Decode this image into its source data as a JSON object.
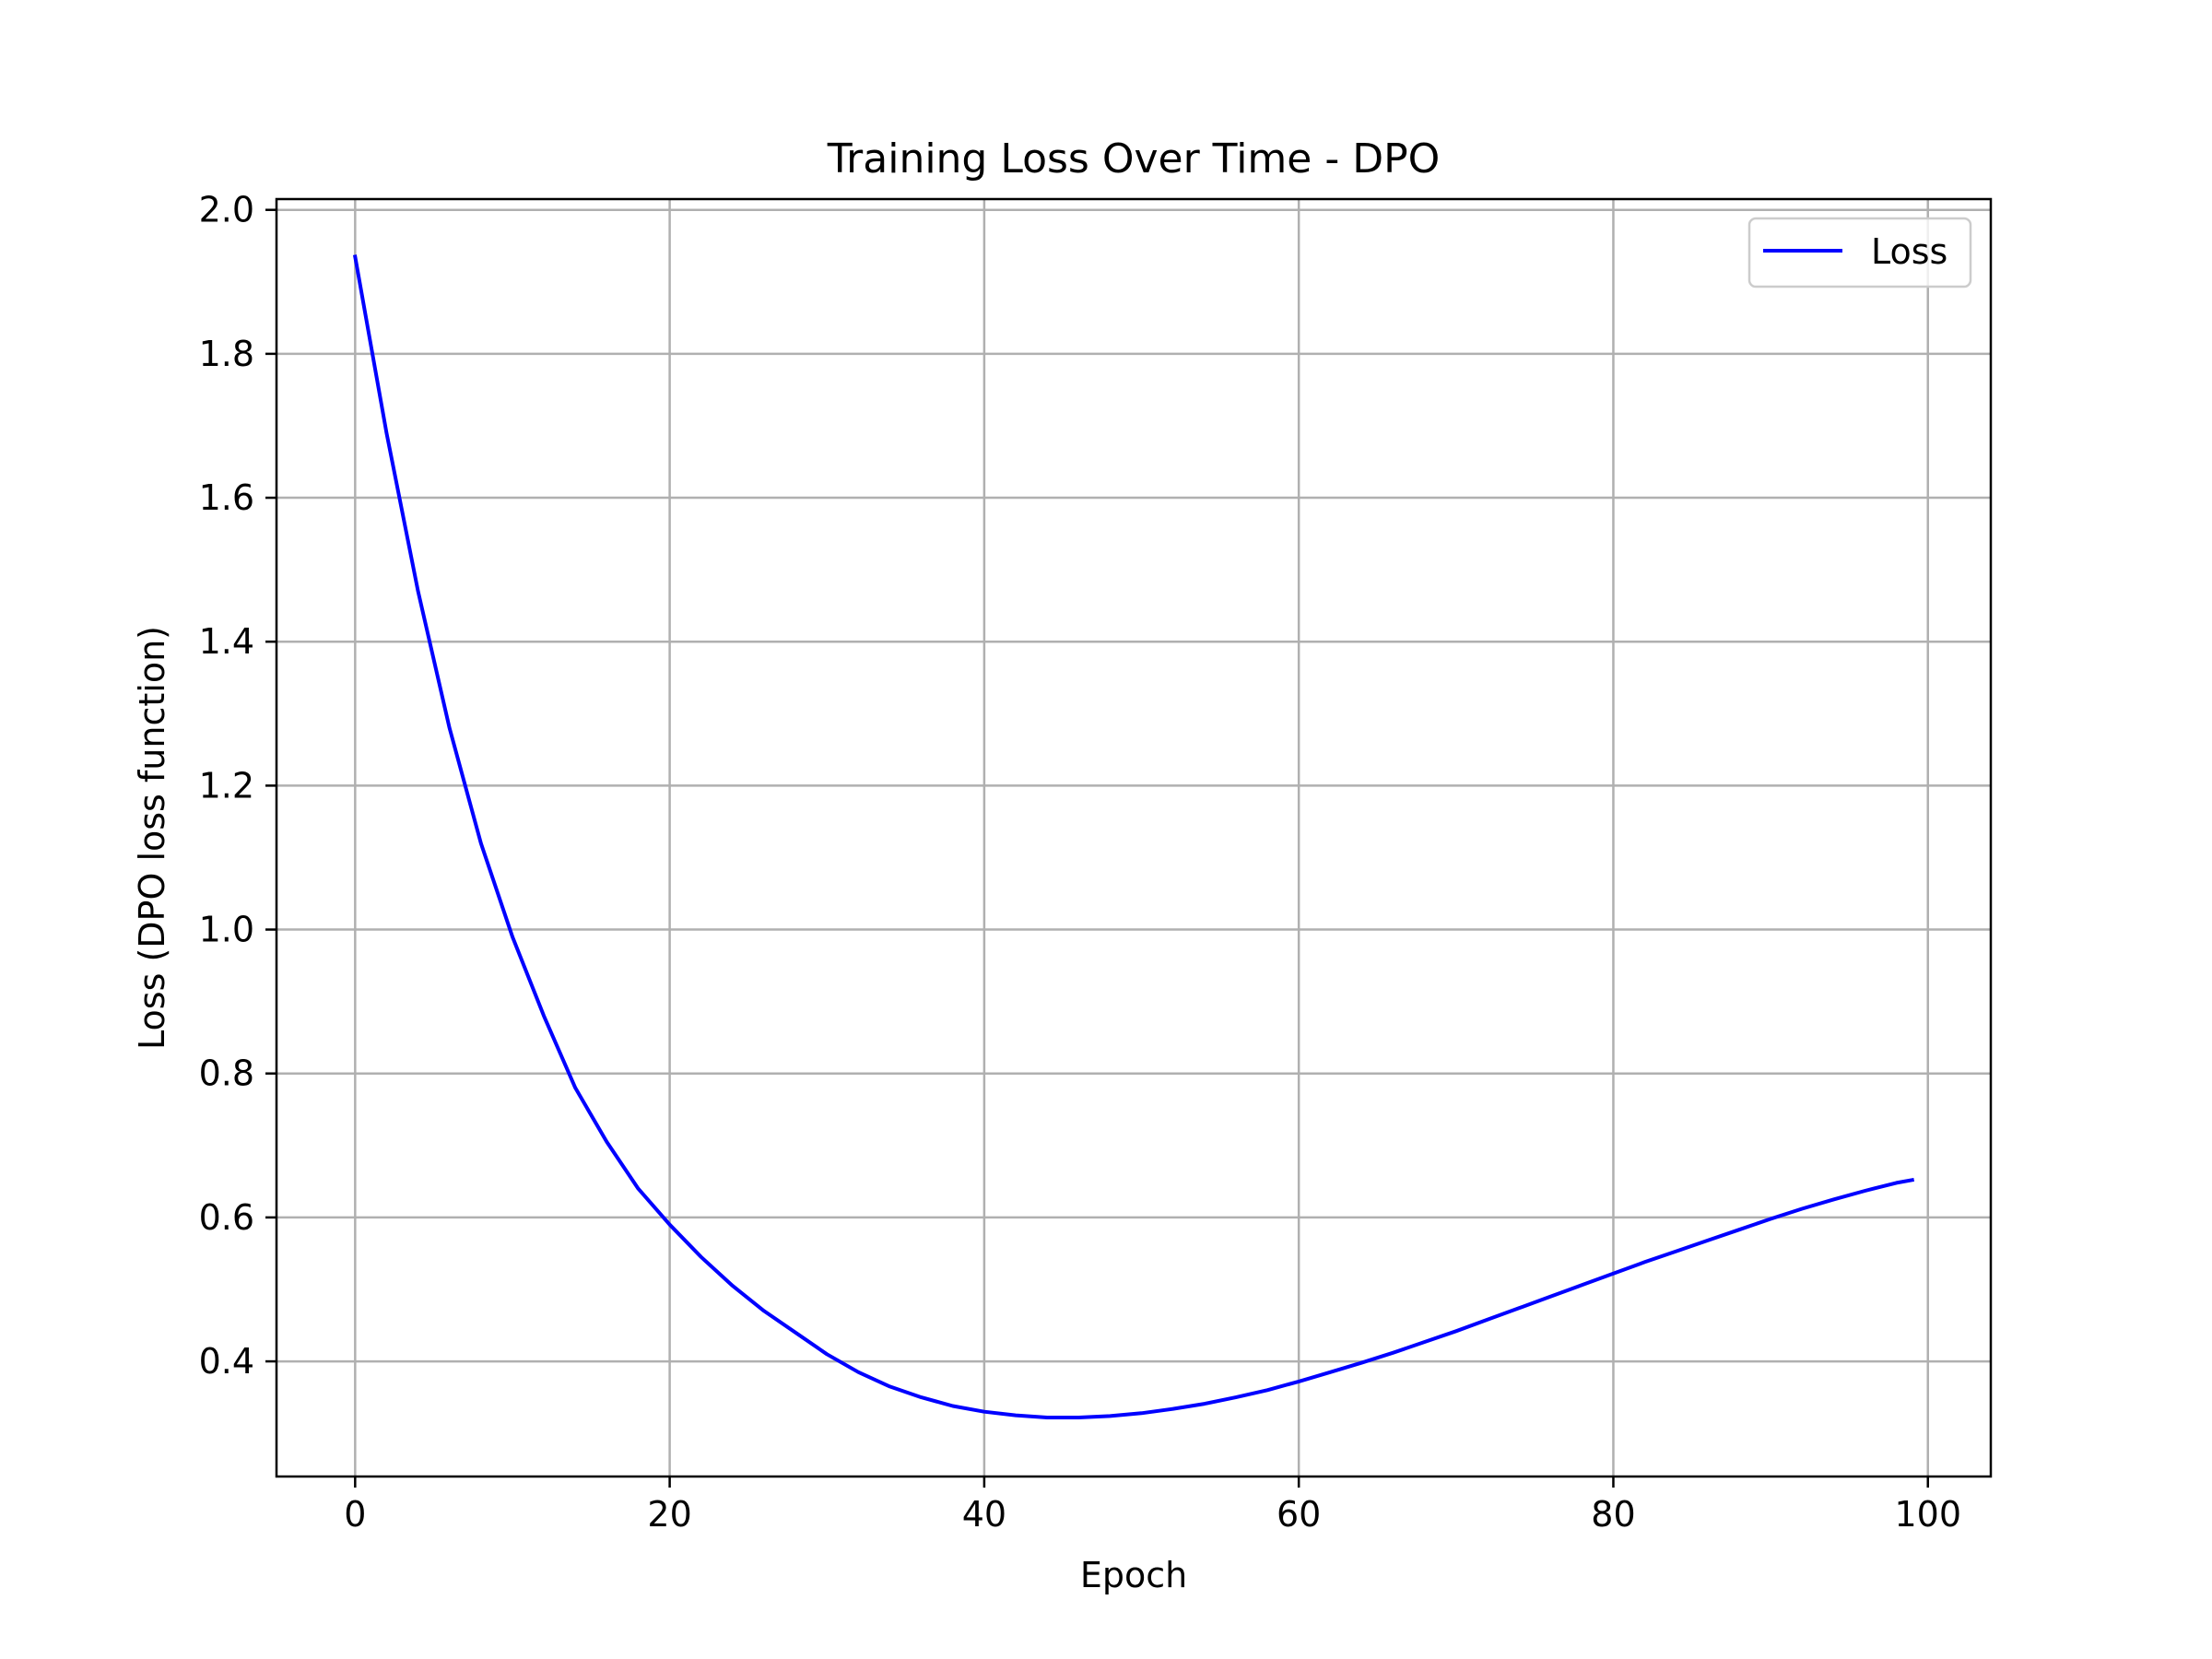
{
  "chart_data": {
    "type": "line",
    "title": "Training Loss Over Time - DPO",
    "xlabel": "Epoch",
    "ylabel": "Loss (DPO loss function)",
    "xlim": [
      -5,
      104
    ],
    "ylim": [
      0.24,
      2.015
    ],
    "xticks": [
      0,
      20,
      40,
      60,
      80,
      100
    ],
    "xtick_labels": [
      "0",
      "20",
      "40",
      "60",
      "80",
      "100"
    ],
    "yticks": [
      0.4,
      0.6,
      0.8,
      1.0,
      1.2,
      1.4,
      1.6,
      1.8,
      2.0
    ],
    "ytick_labels": [
      "0.4",
      "0.6",
      "0.8",
      "1.0",
      "1.2",
      "1.4",
      "1.6",
      "1.8",
      "2.0"
    ],
    "grid": true,
    "legend_position": "top-right",
    "series": [
      {
        "name": "Loss",
        "color": "#0000ff",
        "x": [
          0,
          2,
          4,
          6,
          8,
          10,
          12,
          14,
          16,
          18,
          20,
          22,
          24,
          26,
          28,
          30,
          32,
          34,
          36,
          38,
          40,
          42,
          44,
          46,
          48,
          50,
          52,
          54,
          56,
          58,
          60,
          62,
          64,
          66,
          68,
          70,
          72,
          74,
          76,
          78,
          80,
          82,
          84,
          86,
          88,
          90,
          92,
          94,
          96,
          98,
          99
        ],
        "y": [
          1.935,
          1.69,
          1.47,
          1.28,
          1.12,
          0.99,
          0.88,
          0.78,
          0.705,
          0.64,
          0.59,
          0.545,
          0.505,
          0.47,
          0.44,
          0.41,
          0.385,
          0.365,
          0.35,
          0.338,
          0.33,
          0.325,
          0.322,
          0.322,
          0.324,
          0.328,
          0.334,
          0.341,
          0.35,
          0.36,
          0.372,
          0.385,
          0.398,
          0.412,
          0.427,
          0.442,
          0.458,
          0.474,
          0.49,
          0.506,
          0.522,
          0.538,
          0.553,
          0.568,
          0.583,
          0.598,
          0.612,
          0.625,
          0.637,
          0.648,
          0.652
        ]
      }
    ]
  }
}
